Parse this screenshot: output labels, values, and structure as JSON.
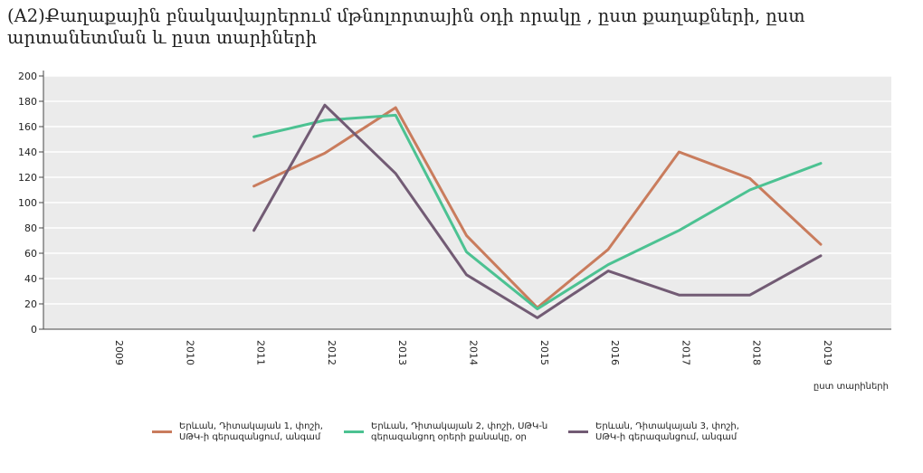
{
  "title": "(A2)Քաղաքային բնակավայրերում մթնոլորտային օդի որակը , ըստ քաղաքների, ըստ արտանետման և ըստ տարիների",
  "colors": {
    "plot_background": "#ebebeb",
    "grid": "#ffffff",
    "series1": "#c97c5d",
    "series2": "#4cc292",
    "series3": "#725b74"
  },
  "chart_data": {
    "type": "line",
    "title": "(A2)Քաղաքային բնակավայրերում մթնոլորտային օդի որակը , ըստ քաղաքների, ըստ արտանետման և ըստ տարիների",
    "xlabel": "ըստ տարիների",
    "ylabel": "",
    "categories": [
      "2009",
      "2010",
      "2011",
      "2012",
      "2013",
      "2014",
      "2015",
      "2016",
      "2017",
      "2018",
      "2019"
    ],
    "ylim": [
      0,
      200
    ],
    "yticks": [
      0,
      20,
      40,
      60,
      80,
      100,
      120,
      140,
      160,
      180,
      200
    ],
    "grid": true,
    "legend_position": "bottom",
    "series": [
      {
        "name": "Երևան, Դիտակայան 1, փոշի, ՍԹԿ-ի գերազանցում, անգամ",
        "color": "#c97c5d",
        "values": [
          null,
          null,
          113,
          139,
          175,
          74,
          17,
          63,
          140,
          119,
          67
        ]
      },
      {
        "name": "Երևան, Դիտակայան 2, փոշի, ՍԹԿ-ն գերազանցող օրերի քանակը, օր",
        "color": "#4cc292",
        "values": [
          null,
          null,
          152,
          165,
          169,
          61,
          16,
          51,
          78,
          110,
          131
        ]
      },
      {
        "name": "Երևան, Դիտակայան 3, փոշի, ՍԹԿ-ի գերազանցում, անգամ",
        "color": "#725b74",
        "values": [
          null,
          null,
          78,
          177,
          123,
          43,
          9,
          46,
          27,
          27,
          58
        ]
      }
    ]
  }
}
